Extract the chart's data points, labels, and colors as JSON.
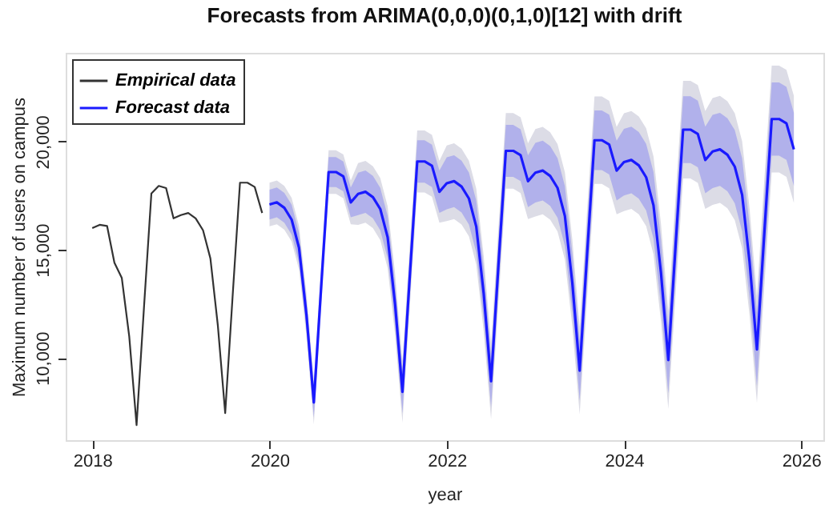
{
  "chart_data": {
    "type": "line",
    "title": "Forecasts from ARIMA(0,0,0)(0,1,0)[12] with drift",
    "xlabel": "year",
    "ylabel": "Maximum number of users on campus",
    "xlim": [
      2017.7,
      2026.25
    ],
    "xticks": [
      2018,
      2020,
      2022,
      2024,
      2026
    ],
    "ylim": [
      6200,
      24100
    ],
    "yticks": [
      {
        "value": 10000,
        "label": "10,000"
      },
      {
        "value": 15000,
        "label": "15,000"
      },
      {
        "value": 20000,
        "label": "20,000"
      }
    ],
    "grid": false,
    "legend": "top left",
    "marker": "none",
    "line_style": "solid",
    "series": [
      {
        "name": "Empirical data",
        "color": "#333333",
        "x": [
          2018.0,
          2018.083,
          2018.167,
          2018.25,
          2018.333,
          2018.417,
          2018.5,
          2018.583,
          2018.667,
          2018.75,
          2018.833,
          2018.917,
          2019.0,
          2019.083,
          2019.167,
          2019.25,
          2019.333,
          2019.417,
          2019.5,
          2019.583,
          2019.667,
          2019.75,
          2019.833,
          2019.917
        ],
        "values": [
          16000,
          16150,
          16100,
          14400,
          13700,
          11000,
          6900,
          12300,
          17600,
          17950,
          17850,
          16450,
          16600,
          16700,
          16450,
          15900,
          14600,
          11500,
          7450,
          12800,
          18100,
          18100,
          17900,
          16700
        ]
      },
      {
        "name": "Forecast data",
        "color": "#1a1aff",
        "x": [
          2020.0,
          2020.083,
          2020.167,
          2020.25,
          2020.333,
          2020.417,
          2020.5,
          2020.583,
          2020.667,
          2020.75,
          2020.833,
          2020.917,
          2021.0,
          2021.083,
          2021.167,
          2021.25,
          2021.333,
          2021.417,
          2021.5,
          2021.583,
          2021.667,
          2021.75,
          2021.833,
          2021.917,
          2022.0,
          2022.083,
          2022.167,
          2022.25,
          2022.333,
          2022.417,
          2022.5,
          2022.583,
          2022.667,
          2022.75,
          2022.833,
          2022.917,
          2023.0,
          2023.083,
          2023.167,
          2023.25,
          2023.333,
          2023.417,
          2023.5,
          2023.583,
          2023.667,
          2023.75,
          2023.833,
          2023.917,
          2024.0,
          2024.083,
          2024.167,
          2024.25,
          2024.333,
          2024.417,
          2024.5,
          2024.583,
          2024.667,
          2024.75,
          2024.833,
          2024.917,
          2025.0,
          2025.083,
          2025.167,
          2025.25,
          2025.333,
          2025.417,
          2025.5,
          2025.583,
          2025.667,
          2025.75,
          2025.833,
          2025.917
        ],
        "values": [
          17090,
          17190,
          16940,
          16390,
          15090,
          11990,
          7940,
          13290,
          18590,
          18590,
          18390,
          17190,
          17580,
          17680,
          17430,
          16880,
          15580,
          12480,
          8430,
          13780,
          19080,
          19080,
          18880,
          17680,
          18070,
          18170,
          17920,
          17370,
          16070,
          12970,
          8920,
          14270,
          19570,
          19570,
          19370,
          18170,
          18560,
          18660,
          18410,
          17860,
          16560,
          13460,
          9410,
          14760,
          20060,
          20060,
          19860,
          18660,
          19050,
          19150,
          18900,
          18350,
          17050,
          13950,
          9900,
          15250,
          20550,
          20550,
          20350,
          19150,
          19540,
          19640,
          19390,
          18840,
          17540,
          14440,
          10390,
          15740,
          21040,
          21040,
          20840,
          19640
        ],
        "lower": [
          16400,
          16500,
          16250,
          15700,
          14400,
          11300,
          7250,
          12600,
          17900,
          17900,
          17700,
          16500,
          16600,
          16700,
          16450,
          15900,
          14600,
          11500,
          7450,
          12800,
          18100,
          18100,
          17900,
          16700,
          16870,
          16970,
          16720,
          16170,
          14870,
          11770,
          7720,
          13070,
          18370,
          18370,
          18170,
          16970,
          17180,
          17280,
          17030,
          16480,
          15180,
          12080,
          8030,
          13380,
          18680,
          18680,
          18480,
          17280,
          17510,
          17610,
          17360,
          16810,
          15510,
          12410,
          8360,
          13710,
          19010,
          19010,
          18810,
          17610,
          17850,
          17950,
          17700,
          17150,
          15850,
          12750,
          8700,
          14050,
          19350,
          19350,
          19150,
          17950
        ],
        "upper": [
          17780,
          17880,
          17630,
          17080,
          15780,
          12680,
          8630,
          13980,
          19280,
          19280,
          19080,
          17880,
          18560,
          18660,
          18410,
          17860,
          16560,
          13460,
          9410,
          14760,
          20060,
          20060,
          19860,
          18660,
          19270,
          19370,
          19120,
          18570,
          17270,
          14170,
          10120,
          15470,
          20770,
          20770,
          20570,
          19370,
          19940,
          20040,
          19790,
          19240,
          17940,
          14840,
          10790,
          16140,
          21440,
          21440,
          21240,
          20040,
          20590,
          20690,
          20440,
          19890,
          18590,
          15490,
          11440,
          16790,
          22090,
          22090,
          21890,
          20690,
          21230,
          21330,
          21080,
          20530,
          19230,
          16130,
          12080,
          17430,
          22730,
          22730,
          22530,
          21330
        ]
      },
      {
        "color": "#dcdce6",
        "x": [
          2020.0,
          2020.083,
          2020.167,
          2020.25,
          2020.333,
          2020.417,
          2020.5,
          2020.583,
          2020.667,
          2020.75,
          2020.833,
          2020.917,
          2021.0,
          2021.083,
          2021.167,
          2021.25,
          2021.333,
          2021.417,
          2021.5,
          2021.583,
          2021.667,
          2021.75,
          2021.833,
          2021.917,
          2022.0,
          2022.083,
          2022.167,
          2022.25,
          2022.333,
          2022.417,
          2022.5,
          2022.583,
          2022.667,
          2022.75,
          2022.833,
          2022.917,
          2023.0,
          2023.083,
          2023.167,
          2023.25,
          2023.333,
          2023.417,
          2023.5,
          2023.583,
          2023.667,
          2023.75,
          2023.833,
          2023.917,
          2024.0,
          2024.083,
          2024.167,
          2024.25,
          2024.333,
          2024.417,
          2024.5,
          2024.583,
          2024.667,
          2024.75,
          2024.833,
          2024.917,
          2025.0,
          2025.083,
          2025.167,
          2025.25,
          2025.333,
          2025.417,
          2025.5,
          2025.583,
          2025.667,
          2025.75,
          2025.833,
          2025.917
        ],
        "values": [
          null,
          null,
          null,
          null,
          null,
          null,
          null,
          null,
          null,
          null,
          null,
          null,
          null,
          null,
          null,
          null,
          null,
          null,
          null,
          null,
          null,
          null,
          null,
          null,
          null,
          null,
          null,
          null,
          null,
          null,
          null,
          null,
          null,
          null,
          null,
          null,
          null,
          null,
          null,
          null,
          null,
          null,
          null,
          null,
          null,
          null,
          null,
          null,
          null,
          null,
          null,
          null,
          null,
          null,
          null,
          null,
          null,
          null,
          null,
          null,
          null,
          null,
          null,
          null,
          null,
          null,
          null,
          null,
          null,
          null,
          null,
          null
        ],
        "lower": [
          16080,
          16180,
          15930,
          15380,
          14080,
          10980,
          6930,
          12280,
          17580,
          17580,
          17380,
          16180,
          16150,
          16250,
          16000,
          15450,
          14150,
          11050,
          7000,
          12350,
          17650,
          17650,
          17450,
          16250,
          16320,
          16420,
          16170,
          15620,
          14320,
          11220,
          7170,
          12520,
          17820,
          17820,
          17620,
          16420,
          16540,
          16640,
          16390,
          15840,
          14540,
          11440,
          7390,
          12740,
          18040,
          18040,
          17840,
          16640,
          16790,
          16890,
          16640,
          16090,
          14790,
          11690,
          7640,
          12990,
          18290,
          18290,
          18090,
          16890,
          17070,
          17170,
          16920,
          16370,
          15070,
          11970,
          7920,
          13270,
          18570,
          18570,
          18370,
          17170
        ],
        "upper": [
          18100,
          18200,
          17950,
          17400,
          16100,
          13000,
          8950,
          14300,
          19600,
          19600,
          19400,
          18200,
          19010,
          19110,
          18860,
          18310,
          17010,
          13910,
          9860,
          15210,
          20510,
          20510,
          20310,
          19110,
          19820,
          19920,
          19670,
          19120,
          17820,
          14720,
          10670,
          16020,
          21320,
          21320,
          21120,
          19920,
          20580,
          20680,
          20430,
          19880,
          18580,
          15480,
          11430,
          16780,
          22080,
          22080,
          21880,
          20680,
          21310,
          21410,
          21160,
          20610,
          19310,
          16210,
          12160,
          17510,
          22810,
          22810,
          22610,
          21410,
          22010,
          22110,
          21860,
          21310,
          20010,
          16910,
          12860,
          18210,
          23510,
          23510,
          23310,
          22110
        ]
      }
    ]
  }
}
